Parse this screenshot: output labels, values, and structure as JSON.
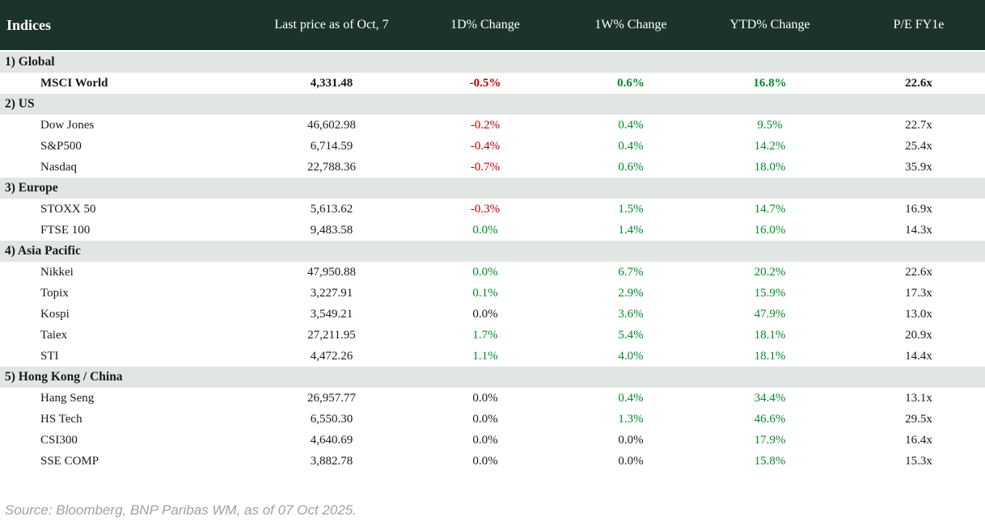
{
  "colors": {
    "header_bg": "#1c332d",
    "header_text": "#ffffff",
    "section_bg": "#e2e6e2",
    "positive": "#008c28",
    "negative": "#c00000",
    "neutral": "#1a1a1a",
    "footer_text": "#9aa3ab"
  },
  "table": {
    "columns": [
      {
        "label": "Indices"
      },
      {
        "label": "Last price as of Oct, 7"
      },
      {
        "label": "1D% Change"
      },
      {
        "label": "1W% Change"
      },
      {
        "label": "YTD% Change"
      },
      {
        "label": "P/E FY1e"
      }
    ],
    "sections": [
      {
        "label": "1) Global",
        "rows": [
          {
            "name": "MSCI World",
            "bold": true,
            "price": "4,331.48",
            "d1": "-0.5%",
            "d1_color": "red",
            "w1": "0.6%",
            "w1_color": "green",
            "ytd": "16.8%",
            "ytd_color": "green",
            "pe": "22.6x"
          }
        ]
      },
      {
        "label": "2) US",
        "rows": [
          {
            "name": "Dow Jones",
            "price": "46,602.98",
            "d1": "-0.2%",
            "d1_color": "red",
            "w1": "0.4%",
            "w1_color": "green",
            "ytd": "9.5%",
            "ytd_color": "green",
            "pe": "22.7x"
          },
          {
            "name": "S&P500",
            "price": "6,714.59",
            "d1": "-0.4%",
            "d1_color": "red",
            "w1": "0.4%",
            "w1_color": "green",
            "ytd": "14.2%",
            "ytd_color": "green",
            "pe": "25.4x"
          },
          {
            "name": "Nasdaq",
            "price": "22,788.36",
            "d1": "-0.7%",
            "d1_color": "red",
            "w1": "0.6%",
            "w1_color": "green",
            "ytd": "18.0%",
            "ytd_color": "green",
            "pe": "35.9x"
          }
        ]
      },
      {
        "label": "3) Europe",
        "rows": [
          {
            "name": "STOXX 50",
            "price": "5,613.62",
            "d1": "-0.3%",
            "d1_color": "red",
            "w1": "1.5%",
            "w1_color": "green",
            "ytd": "14.7%",
            "ytd_color": "green",
            "pe": "16.9x"
          },
          {
            "name": "FTSE 100",
            "price": "9,483.58",
            "d1": "0.0%",
            "d1_color": "green",
            "w1": "1.4%",
            "w1_color": "green",
            "ytd": "16.0%",
            "ytd_color": "green",
            "pe": "14.3x"
          }
        ]
      },
      {
        "label": "4) Asia Pacific",
        "rows": [
          {
            "name": "Nikkei",
            "price": "47,950.88",
            "d1": "0.0%",
            "d1_color": "green",
            "w1": "6.7%",
            "w1_color": "green",
            "ytd": "20.2%",
            "ytd_color": "green",
            "pe": "22.6x"
          },
          {
            "name": "Topix",
            "price": "3,227.91",
            "d1": "0.1%",
            "d1_color": "green",
            "w1": "2.9%",
            "w1_color": "green",
            "ytd": "15.9%",
            "ytd_color": "green",
            "pe": "17.3x"
          },
          {
            "name": "Kospi",
            "price": "3,549.21",
            "d1": "0.0%",
            "d1_color": "black",
            "w1": "3.6%",
            "w1_color": "green",
            "ytd": "47.9%",
            "ytd_color": "green",
            "pe": "13.0x"
          },
          {
            "name": "Taiex",
            "price": "27,211.95",
            "d1": "1.7%",
            "d1_color": "green",
            "w1": "5.4%",
            "w1_color": "green",
            "ytd": "18.1%",
            "ytd_color": "green",
            "pe": "20.9x"
          },
          {
            "name": "STI",
            "price": "4,472.26",
            "d1": "1.1%",
            "d1_color": "green",
            "w1": "4.0%",
            "w1_color": "green",
            "ytd": "18.1%",
            "ytd_color": "green",
            "pe": "14.4x"
          }
        ]
      },
      {
        "label": "5) Hong Kong / China",
        "rows": [
          {
            "name": "Hang Seng",
            "price": "26,957.77",
            "d1": "0.0%",
            "d1_color": "black",
            "w1": "0.4%",
            "w1_color": "green",
            "ytd": "34.4%",
            "ytd_color": "green",
            "pe": "13.1x"
          },
          {
            "name": "HS Tech",
            "price": "6,550.30",
            "d1": "0.0%",
            "d1_color": "black",
            "w1": "1.3%",
            "w1_color": "green",
            "ytd": "46.6%",
            "ytd_color": "green",
            "pe": "29.5x"
          },
          {
            "name": "CSI300",
            "price": "4,640.69",
            "d1": "0.0%",
            "d1_color": "black",
            "w1": "0.0%",
            "w1_color": "black",
            "ytd": "17.9%",
            "ytd_color": "green",
            "pe": "16.4x"
          },
          {
            "name": "SSE COMP",
            "price": "3,882.78",
            "d1": "0.0%",
            "d1_color": "black",
            "w1": "0.0%",
            "w1_color": "black",
            "ytd": "15.8%",
            "ytd_color": "green",
            "pe": "15.3x"
          }
        ]
      }
    ]
  },
  "footer": {
    "source": "Source: Bloomberg, BNP Paribas WM, as of 07 Oct 2025."
  }
}
